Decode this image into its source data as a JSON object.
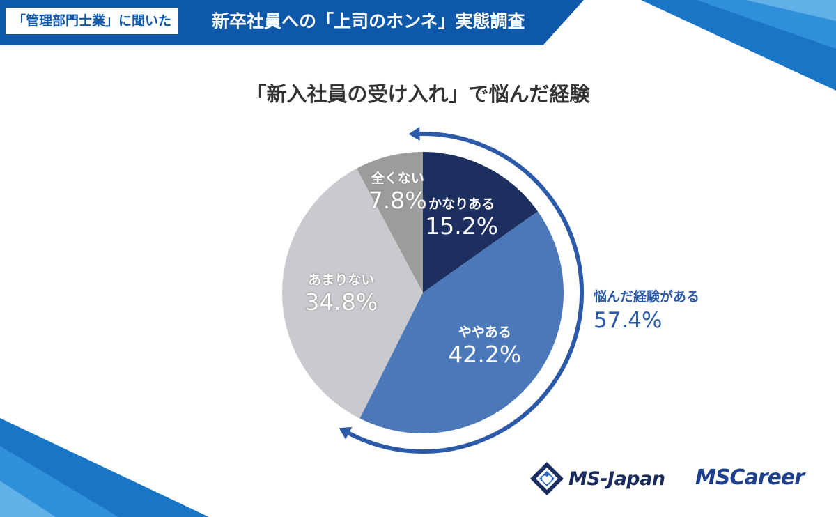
{
  "header": {
    "tag": "「管理部門士業」に聞いた",
    "title": "新卒社員への「上司のホンネ」実態調査"
  },
  "chart_data": {
    "type": "pie",
    "title": "「新入社員の受け入れ」で悩んだ経験",
    "categories": [
      "かなりある",
      "ややある",
      "あまりない",
      "全くない"
    ],
    "values": [
      15.2,
      42.2,
      34.8,
      7.8
    ],
    "labels": [
      "15.2%",
      "42.2%",
      "34.8%",
      "7.8%"
    ],
    "colors": [
      "#1c2f5e",
      "#4a78b9",
      "#c9cace",
      "#9c9c9c"
    ],
    "start": "12 o'clock",
    "direction": "clockwise",
    "annotation": {
      "label": "悩んだ経験がある",
      "value": "57.4%",
      "color": "#2d5aa8"
    }
  },
  "logos": {
    "ms_japan": "MS-Japan",
    "ms_career": "MSCareer"
  }
}
